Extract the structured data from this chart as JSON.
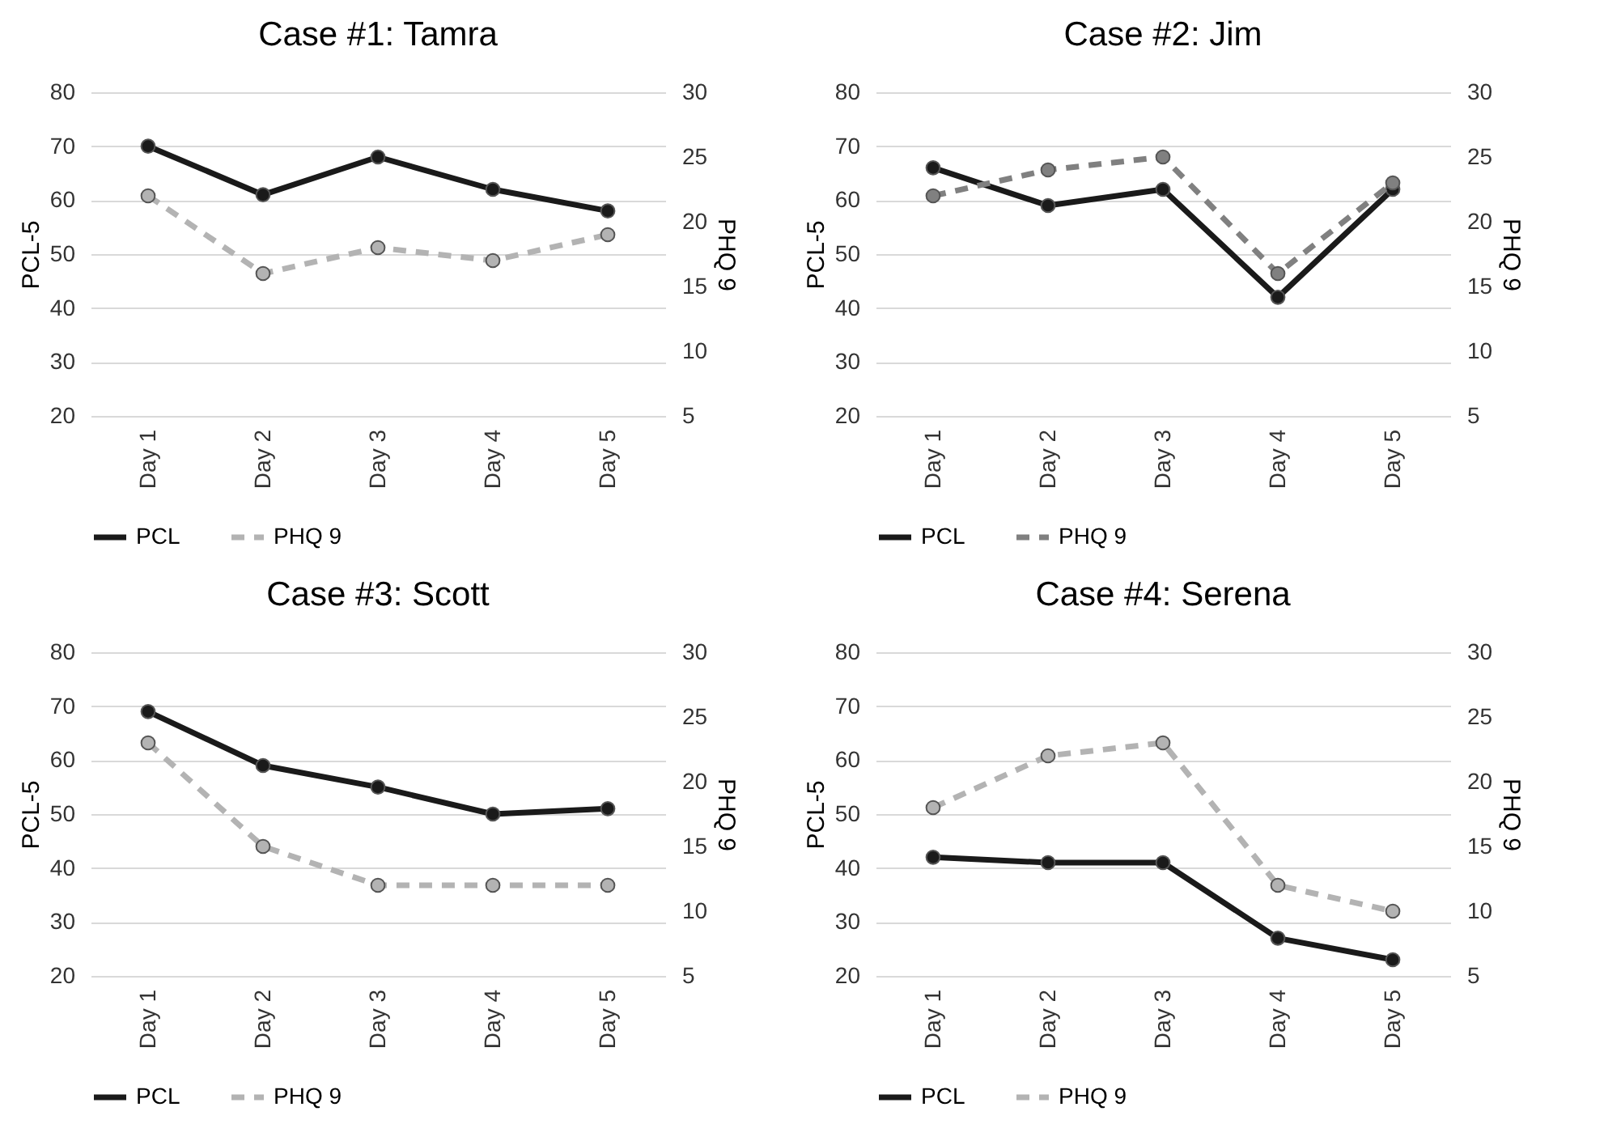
{
  "chart_data": [
    {
      "type": "line",
      "title": "Case #1: Tamra",
      "categories": [
        "Day 1",
        "Day 2",
        "Day 3",
        "Day 4",
        "Day 5"
      ],
      "ylabel": "PCL-5",
      "y2label": "PHQ 9",
      "ylim": [
        20,
        80
      ],
      "yticks": [
        20,
        30,
        40,
        50,
        60,
        70,
        80
      ],
      "y2lim": [
        5,
        30
      ],
      "y2ticks": [
        5,
        10,
        15,
        20,
        25,
        30
      ],
      "grid": "y",
      "legend": "bottom",
      "marker": "circle",
      "series": [
        {
          "name": "PCL",
          "color": "#1a1a1a",
          "line_style": "solid",
          "values": [
            70,
            61,
            68,
            62,
            58
          ]
        },
        {
          "name": "PHQ 9",
          "color": "#b3b3b3",
          "line_style": "dashed",
          "axis": "y2",
          "values": [
            22,
            16,
            18,
            17,
            19
          ]
        }
      ]
    },
    {
      "type": "line",
      "title": "Case #2: Jim",
      "categories": [
        "Day 1",
        "Day 2",
        "Day 3",
        "Day 4",
        "Day 5"
      ],
      "ylabel": "PCL-5",
      "y2label": "PHQ 9",
      "ylim": [
        20,
        80
      ],
      "yticks": [
        20,
        30,
        40,
        50,
        60,
        70,
        80
      ],
      "y2lim": [
        5,
        30
      ],
      "y2ticks": [
        5,
        10,
        15,
        20,
        25,
        30
      ],
      "grid": "y",
      "legend": "bottom",
      "marker": "circle",
      "series": [
        {
          "name": "PCL",
          "color": "#1a1a1a",
          "line_style": "solid",
          "values": [
            66,
            59,
            62,
            42,
            62
          ]
        },
        {
          "name": "PHQ 9",
          "color": "#808080",
          "line_style": "dashed",
          "axis": "y2",
          "values": [
            22,
            24,
            25,
            16,
            23
          ]
        }
      ]
    },
    {
      "type": "line",
      "title": "Case #3: Scott",
      "categories": [
        "Day 1",
        "Day 2",
        "Day 3",
        "Day 4",
        "Day 5"
      ],
      "ylabel": "PCL-5",
      "y2label": "PHQ 9",
      "ylim": [
        20,
        80
      ],
      "yticks": [
        20,
        30,
        40,
        50,
        60,
        70,
        80
      ],
      "y2lim": [
        5,
        30
      ],
      "y2ticks": [
        5,
        10,
        15,
        20,
        25,
        30
      ],
      "grid": "y",
      "legend": "bottom",
      "marker": "circle",
      "series": [
        {
          "name": "PCL",
          "color": "#1a1a1a",
          "line_style": "solid",
          "values": [
            69,
            59,
            55,
            50,
            51
          ]
        },
        {
          "name": "PHQ 9",
          "color": "#b3b3b3",
          "line_style": "dashed",
          "axis": "y2",
          "values": [
            23,
            15,
            12,
            12,
            12
          ]
        }
      ]
    },
    {
      "type": "line",
      "title": "Case #4: Serena",
      "categories": [
        "Day 1",
        "Day 2",
        "Day 3",
        "Day 4",
        "Day 5"
      ],
      "ylabel": "PCL-5",
      "y2label": "PHQ 9",
      "ylim": [
        20,
        80
      ],
      "yticks": [
        20,
        30,
        40,
        50,
        60,
        70,
        80
      ],
      "y2lim": [
        5,
        30
      ],
      "y2ticks": [
        5,
        10,
        15,
        20,
        25,
        30
      ],
      "grid": "y",
      "legend": "bottom",
      "marker": "circle",
      "series": [
        {
          "name": "PCL",
          "color": "#1a1a1a",
          "line_style": "solid",
          "values": [
            42,
            41,
            41,
            27,
            23
          ]
        },
        {
          "name": "PHQ 9",
          "color": "#b3b3b3",
          "line_style": "dashed",
          "axis": "y2",
          "values": [
            18,
            22,
            23,
            12,
            10
          ]
        }
      ]
    }
  ]
}
